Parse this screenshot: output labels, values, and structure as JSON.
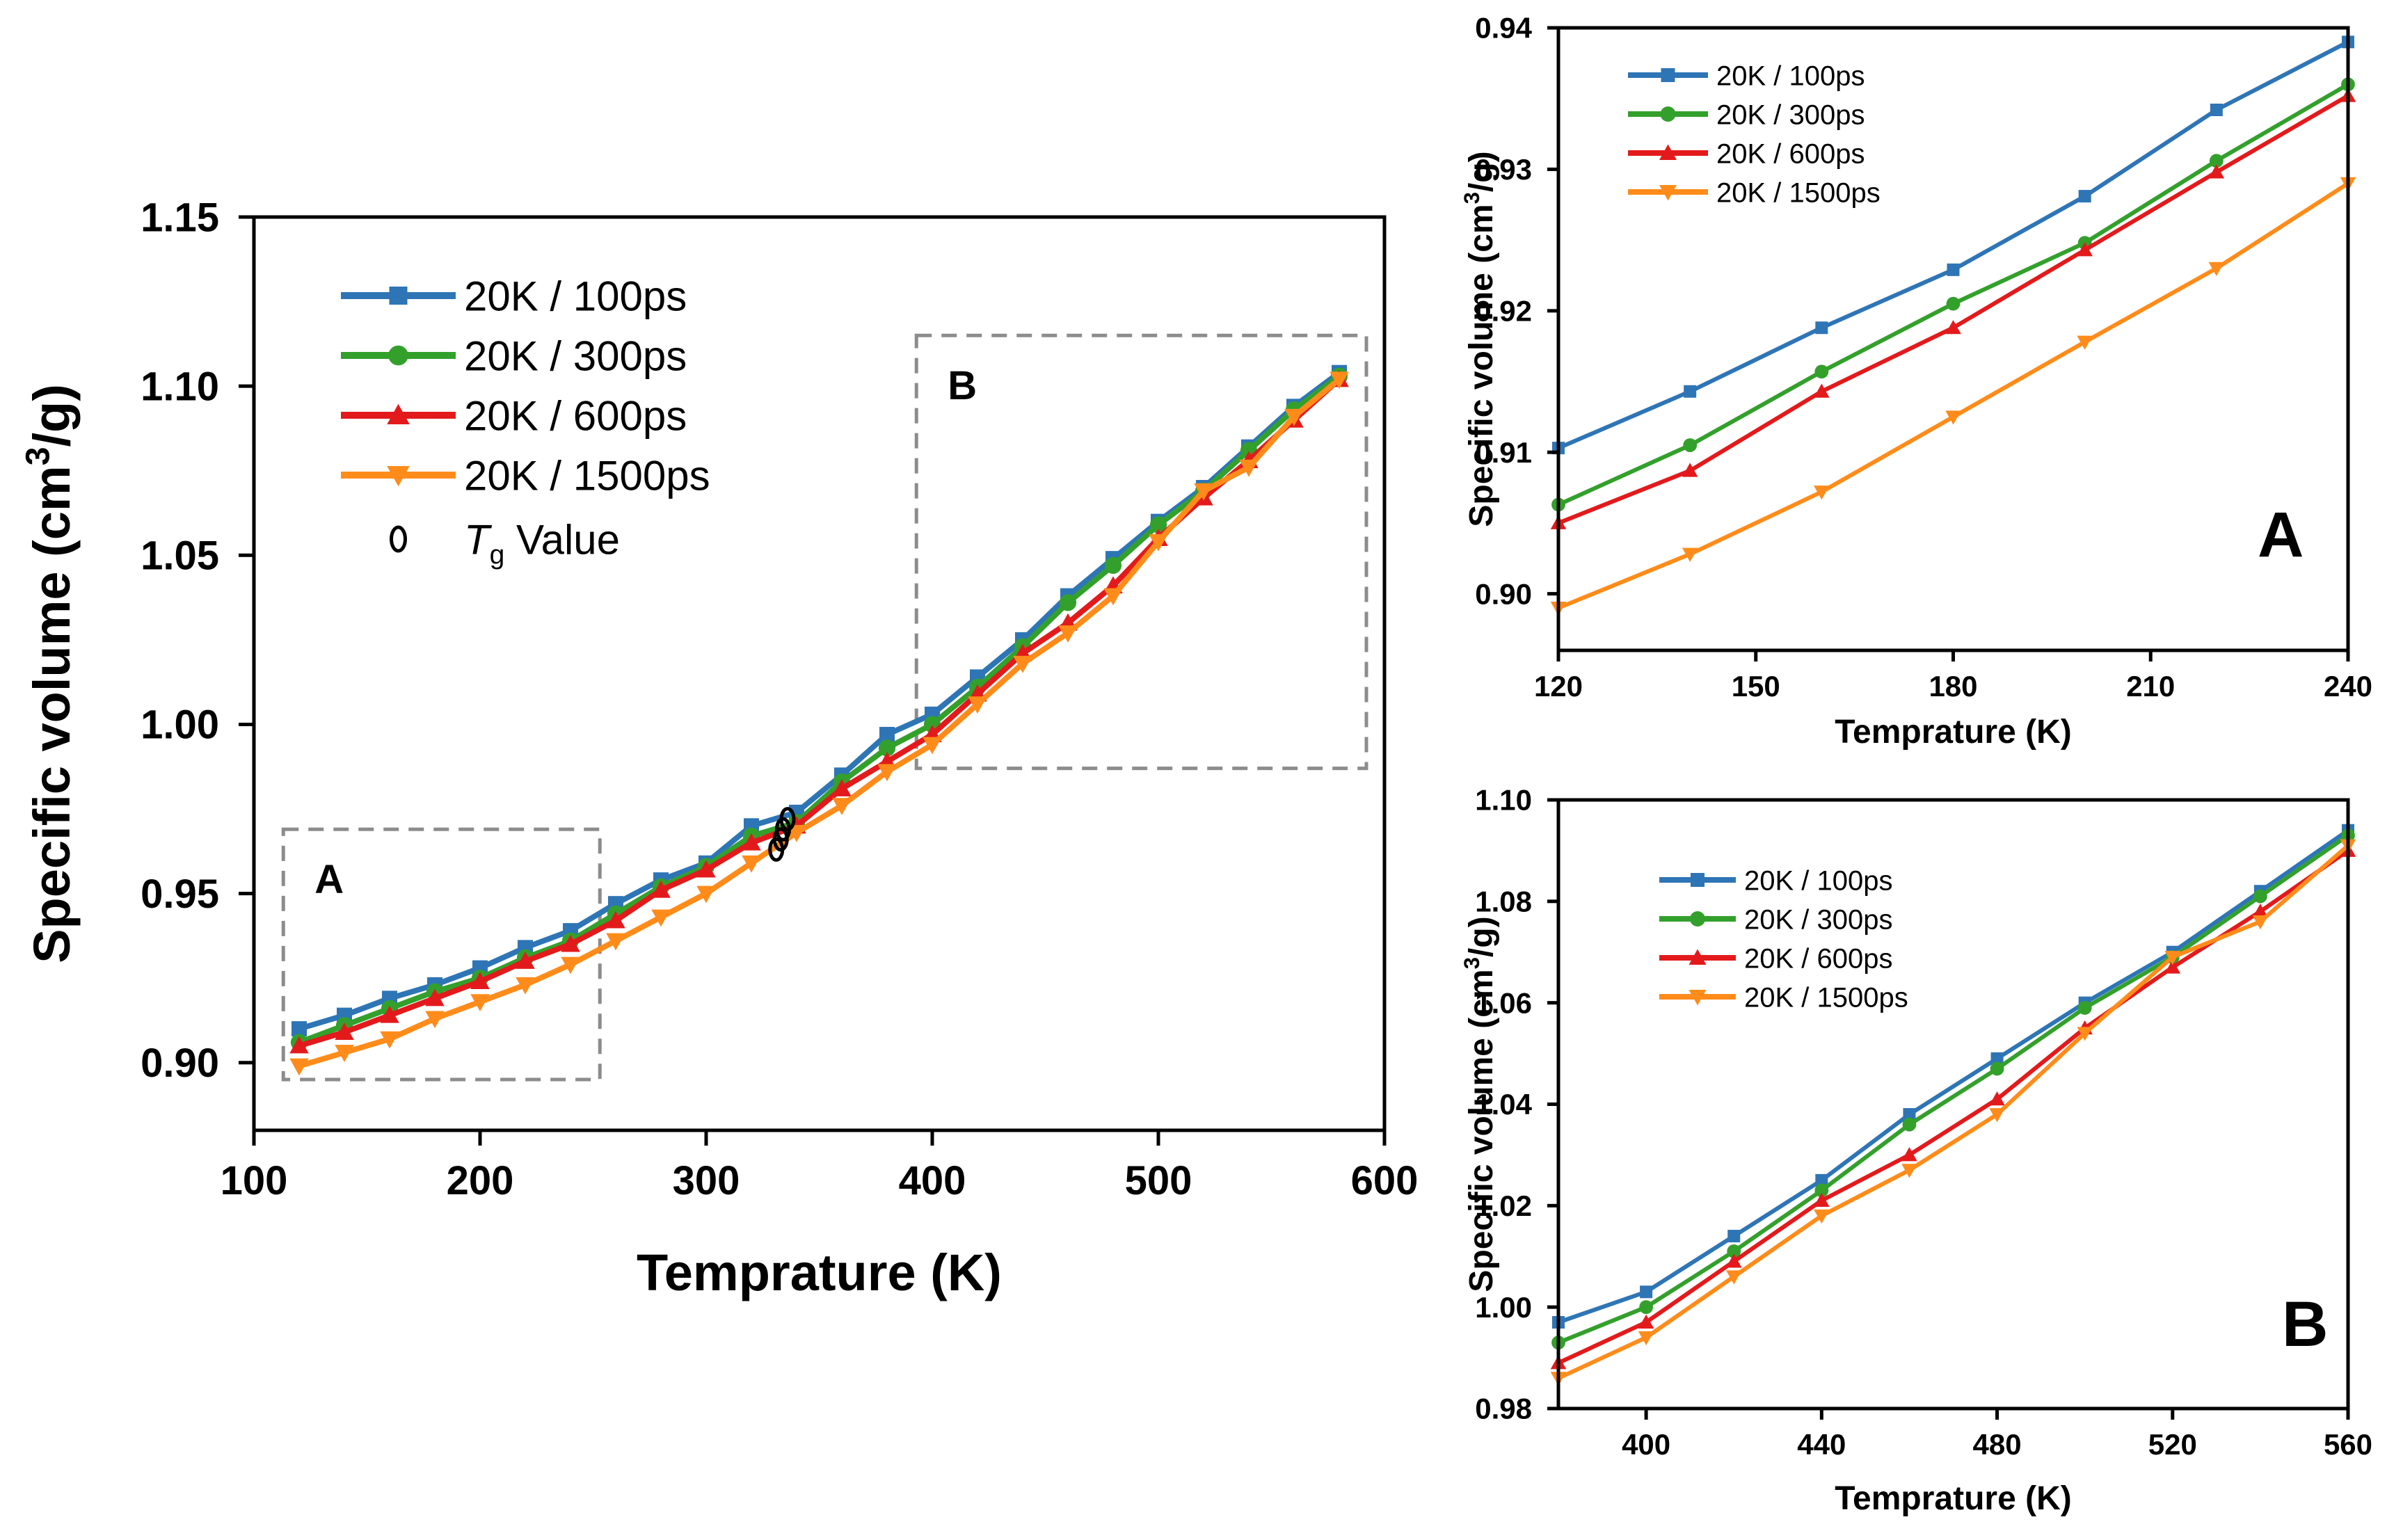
{
  "colors": {
    "blue": "#2e75b6",
    "green": "#33a02c",
    "red": "#e31a1c",
    "orange": "#ff8c1a",
    "box": "#8c8c8c"
  },
  "chart_data": [
    {
      "type": "line",
      "panel": "main",
      "title": "",
      "xlabel": "Temprature (K)",
      "ylabel": "Specific volume (cm³/g)",
      "ylabel_parts": {
        "pre": "Specific volume (cm",
        "sup": "3",
        "post": "/g)"
      },
      "xlim": [
        100,
        600
      ],
      "ylim": [
        0.88,
        1.15
      ],
      "xticks": [
        100,
        200,
        300,
        400,
        500,
        600
      ],
      "yticks": [
        0.9,
        0.95,
        1.0,
        1.05,
        1.1,
        1.15
      ],
      "ytick_labels": [
        "0.90",
        "0.95",
        "1.00",
        "1.05",
        "1.10",
        "1.15"
      ],
      "legend_position": "top-left",
      "legend_extra": {
        "symbol": "ellipse",
        "label_italic": "T",
        "label_sub": "g",
        "label_rest": " Value"
      },
      "zoom_boxes": [
        {
          "label": "A",
          "x_range": [
            113,
            253
          ],
          "y_range": [
            0.895,
            0.969
          ]
        },
        {
          "label": "B",
          "x_range": [
            393,
            592
          ],
          "y_range": [
            0.987,
            1.115
          ]
        }
      ],
      "x": [
        120,
        140,
        160,
        180,
        200,
        220,
        240,
        260,
        280,
        300,
        320,
        340,
        360,
        380,
        400,
        420,
        440,
        460,
        480,
        500,
        520,
        540,
        560,
        580
      ],
      "series": [
        {
          "name": "20K / 100ps",
          "marker": "square",
          "color_key": "blue",
          "values": [
            0.91,
            0.914,
            0.919,
            0.923,
            0.928,
            0.934,
            0.939,
            0.947,
            0.954,
            0.959,
            0.97,
            0.974,
            0.985,
            0.997,
            1.003,
            1.014,
            1.025,
            1.038,
            1.049,
            1.06,
            1.07,
            1.082,
            1.094,
            1.104
          ]
        },
        {
          "name": "20K / 300ps",
          "marker": "circle",
          "color_key": "green",
          "values": [
            0.906,
            0.911,
            0.916,
            0.921,
            0.925,
            0.931,
            0.936,
            0.944,
            0.952,
            0.958,
            0.967,
            0.971,
            0.983,
            0.993,
            1.0,
            1.011,
            1.023,
            1.036,
            1.047,
            1.059,
            1.069,
            1.081,
            1.093,
            1.103
          ]
        },
        {
          "name": "20K / 600ps",
          "marker": "triangle-up",
          "color_key": "red",
          "values": [
            0.905,
            0.909,
            0.914,
            0.919,
            0.924,
            0.93,
            0.935,
            0.942,
            0.951,
            0.957,
            0.965,
            0.97,
            0.981,
            0.989,
            0.997,
            1.009,
            1.021,
            1.03,
            1.041,
            1.055,
            1.067,
            1.078,
            1.09,
            1.102
          ]
        },
        {
          "name": "20K / 1500ps",
          "marker": "triangle-down",
          "color_key": "orange",
          "values": [
            0.899,
            0.903,
            0.907,
            0.913,
            0.918,
            0.923,
            0.929,
            0.936,
            0.943,
            0.95,
            0.959,
            0.968,
            0.976,
            0.986,
            0.994,
            1.006,
            1.018,
            1.027,
            1.038,
            1.054,
            1.069,
            1.076,
            1.091,
            1.102
          ]
        }
      ],
      "tg_points": [
        [
          331,
          0.963
        ],
        [
          333,
          0.966
        ],
        [
          334,
          0.969
        ],
        [
          336,
          0.972
        ]
      ]
    },
    {
      "type": "line",
      "panel": "A",
      "panel_label": "A",
      "xlabel": "Temprature (K)",
      "ylabel": "Specific volume (cm³/g)",
      "ylabel_parts": {
        "pre": "Specific volume (cm",
        "sup": "3",
        "post": "/g)"
      },
      "xlim": [
        120,
        240
      ],
      "ylim": [
        0.896,
        0.94
      ],
      "xticks": [
        120,
        150,
        180,
        210,
        240
      ],
      "yticks": [
        0.9,
        0.91,
        0.92,
        0.93,
        0.94
      ],
      "ytick_labels": [
        "0.90",
        "0.91",
        "0.92",
        "0.93",
        "0.94"
      ],
      "legend_position": "top-left",
      "x": [
        120,
        140,
        160,
        180,
        200,
        220,
        240
      ],
      "series": [
        {
          "name": "20K / 100ps",
          "marker": "square",
          "color_key": "blue",
          "values": [
            0.9103,
            0.9143,
            0.9188,
            0.9229,
            0.9281,
            0.9342,
            0.939
          ]
        },
        {
          "name": "20K / 300ps",
          "marker": "circle",
          "color_key": "green",
          "values": [
            0.9063,
            0.9105,
            0.9157,
            0.9205,
            0.9248,
            0.9306,
            0.936
          ]
        },
        {
          "name": "20K / 600ps",
          "marker": "triangle-up",
          "color_key": "red",
          "values": [
            0.905,
            0.9087,
            0.9143,
            0.9188,
            0.9243,
            0.9298,
            0.9352
          ]
        },
        {
          "name": "20K / 1500ps",
          "marker": "triangle-down",
          "color_key": "orange",
          "values": [
            0.899,
            0.9028,
            0.9072,
            0.9125,
            0.9178,
            0.923,
            0.929
          ]
        }
      ]
    },
    {
      "type": "line",
      "panel": "B",
      "panel_label": "B",
      "xlabel": "Temprature (K)",
      "ylabel": "Specific volume (cm³/g)",
      "ylabel_parts": {
        "pre": "Specific volume (cm",
        "sup": "3",
        "post": "/g)"
      },
      "xlim": [
        380,
        560
      ],
      "ylim": [
        0.98,
        1.1
      ],
      "xticks": [
        400,
        440,
        480,
        520,
        560
      ],
      "yticks": [
        0.98,
        1.0,
        1.02,
        1.04,
        1.06,
        1.08,
        1.1
      ],
      "ytick_labels": [
        "0.98",
        "1.00",
        "1.02",
        "1.04",
        "1.06",
        "1.08",
        "1.10"
      ],
      "legend_position": "top-left",
      "x": [
        380,
        400,
        420,
        440,
        460,
        480,
        500,
        520,
        540,
        560
      ],
      "series": [
        {
          "name": "20K / 100ps",
          "marker": "square",
          "color_key": "blue",
          "values": [
            0.997,
            1.003,
            1.014,
            1.025,
            1.038,
            1.049,
            1.06,
            1.07,
            1.082,
            1.094
          ]
        },
        {
          "name": "20K / 300ps",
          "marker": "circle",
          "color_key": "green",
          "values": [
            0.993,
            1.0,
            1.011,
            1.023,
            1.036,
            1.047,
            1.059,
            1.069,
            1.081,
            1.093
          ]
        },
        {
          "name": "20K / 600ps",
          "marker": "triangle-up",
          "color_key": "red",
          "values": [
            0.989,
            0.997,
            1.009,
            1.021,
            1.03,
            1.041,
            1.055,
            1.067,
            1.078,
            1.09
          ]
        },
        {
          "name": "20K / 1500ps",
          "marker": "triangle-down",
          "color_key": "orange",
          "values": [
            0.986,
            0.994,
            1.006,
            1.018,
            1.027,
            1.038,
            1.054,
            1.069,
            1.076,
            1.091
          ]
        }
      ]
    }
  ]
}
